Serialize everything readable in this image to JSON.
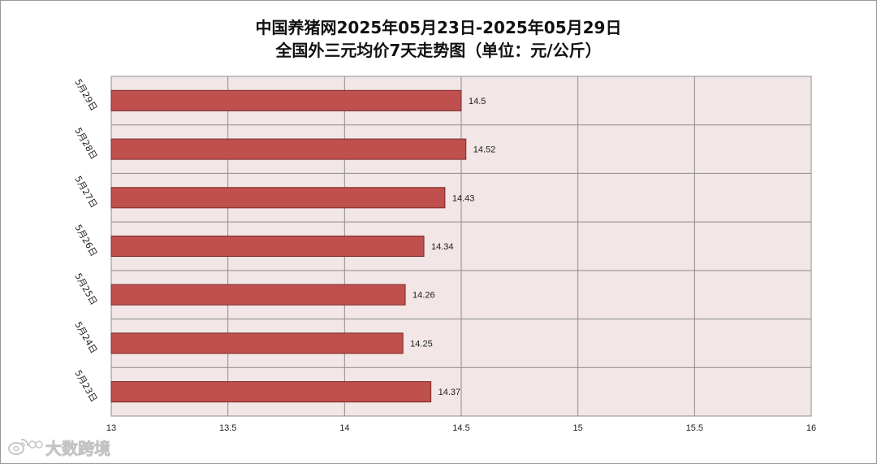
{
  "chart_data": {
    "type": "bar",
    "orientation": "horizontal",
    "title": "中国养猪网2025年05月23日-2025年05月29日",
    "subtitle": "全国外三元均价7天走势图（单位：元/公斤）",
    "categories": [
      "5月29日",
      "5月28日",
      "5月27日",
      "5月26日",
      "5月25日",
      "5月24日",
      "5月23日"
    ],
    "values": [
      14.5,
      14.52,
      14.43,
      14.34,
      14.26,
      14.25,
      14.37
    ],
    "value_labels": [
      "14.5",
      "14.52",
      "14.43",
      "14.34",
      "14.26",
      "14.25",
      "14.37"
    ],
    "xlim": [
      13,
      16
    ],
    "xticks": [
      13,
      13.5,
      14,
      14.5,
      15,
      15.5,
      16
    ],
    "xtick_labels": [
      "13",
      "13.5",
      "14",
      "14.5",
      "15",
      "15.5",
      "16"
    ],
    "grid": true,
    "legend": "none",
    "colors": {
      "bar_fill": "#c0504d",
      "bar_stroke": "#7a2a28",
      "plot_background": "#f2e6e6",
      "grid": "#8c8c8c"
    }
  },
  "watermark": {
    "text": "大数跨境",
    "icon": "weibo-logo-icon"
  }
}
